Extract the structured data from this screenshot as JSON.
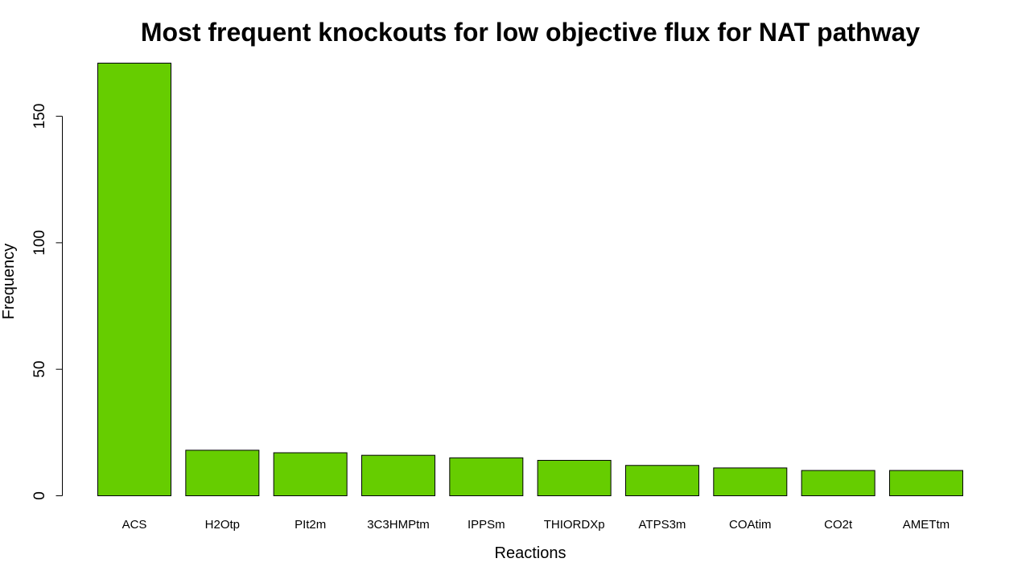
{
  "chart_data": {
    "type": "bar",
    "title": "Most frequent knockouts for low objective flux for NAT pathway",
    "xlabel": "Reactions",
    "ylabel": "Frequency",
    "categories": [
      "ACS",
      "H2Otp",
      "PIt2m",
      "3C3HMPtm",
      "IPPSm",
      "THIORDXp",
      "ATPS3m",
      "COAtim",
      "CO2t",
      "AMETtm"
    ],
    "values": [
      171,
      18,
      17,
      16,
      15,
      14,
      12,
      11,
      10,
      10
    ],
    "yticks": [
      0,
      50,
      100,
      150
    ],
    "ylim": [
      0,
      171
    ],
    "bar_color": "#66CD00",
    "grid": false,
    "legend": "none"
  }
}
